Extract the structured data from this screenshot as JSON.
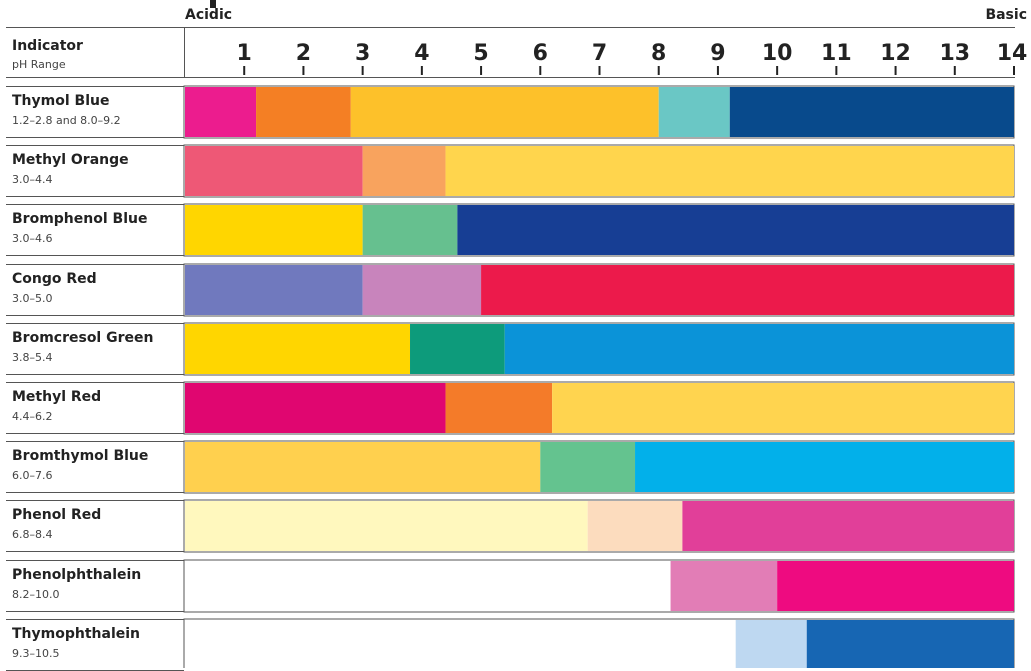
{
  "chart_data": {
    "type": "bar",
    "orientation": "horizontal",
    "subtype": "ph-indicator-ranges",
    "x_axis": {
      "min": 0,
      "max": 14,
      "ticks": [
        1,
        2,
        3,
        4,
        5,
        6,
        7,
        8,
        9,
        10,
        11,
        12,
        13,
        14
      ],
      "tick_labels": [
        "1",
        "2",
        "3",
        "4",
        "5",
        "6",
        "7",
        "8",
        "9",
        "10",
        "11",
        "12",
        "13",
        "14"
      ],
      "left_end_label": "Acidic",
      "right_end_label": "Basic"
    },
    "header": {
      "title": "Indicator",
      "subtitle": "pH Range"
    },
    "indicators": [
      {
        "name": "Thymol Blue",
        "range_text": "1.2–2.8 and 8.0–9.2",
        "segments": [
          {
            "start": 0,
            "end": 1.2,
            "color": "#ec1c8e"
          },
          {
            "start": 1.2,
            "end": 2.8,
            "color": "#f47f24"
          },
          {
            "start": 2.8,
            "end": 8.0,
            "color": "#fdc12a"
          },
          {
            "start": 8.0,
            "end": 9.2,
            "color": "#6ac7c5"
          },
          {
            "start": 9.2,
            "end": 14,
            "color": "#084a8c"
          }
        ]
      },
      {
        "name": "Methyl Orange",
        "range_text": "3.0–4.4",
        "segments": [
          {
            "start": 0,
            "end": 3.0,
            "color": "#ee5876"
          },
          {
            "start": 3.0,
            "end": 4.4,
            "color": "#f8a35e"
          },
          {
            "start": 4.4,
            "end": 14,
            "color": "#ffd54d"
          }
        ]
      },
      {
        "name": "Bromphenol Blue",
        "range_text": "3.0–4.6",
        "segments": [
          {
            "start": 0,
            "end": 3.0,
            "color": "#ffd600"
          },
          {
            "start": 3.0,
            "end": 4.6,
            "color": "#66c08f"
          },
          {
            "start": 4.6,
            "end": 14,
            "color": "#173e94"
          }
        ]
      },
      {
        "name": "Congo Red",
        "range_text": "3.0–5.0",
        "segments": [
          {
            "start": 0,
            "end": 3.0,
            "color": "#7079be"
          },
          {
            "start": 3.0,
            "end": 5.0,
            "color": "#c884bc"
          },
          {
            "start": 5.0,
            "end": 14,
            "color": "#ec1a4b"
          }
        ]
      },
      {
        "name": "Bromcresol Green",
        "range_text": "3.8–5.4",
        "segments": [
          {
            "start": 0,
            "end": 3.8,
            "color": "#ffd600"
          },
          {
            "start": 3.8,
            "end": 5.4,
            "color": "#0d9b7b"
          },
          {
            "start": 5.4,
            "end": 14,
            "color": "#0b93d8"
          }
        ]
      },
      {
        "name": "Methyl Red",
        "range_text": "4.4–6.2",
        "segments": [
          {
            "start": 0,
            "end": 4.4,
            "color": "#e00670"
          },
          {
            "start": 4.4,
            "end": 6.2,
            "color": "#f47b29"
          },
          {
            "start": 6.2,
            "end": 14,
            "color": "#ffd44f"
          }
        ]
      },
      {
        "name": "Bromthymol Blue",
        "range_text": "6.0–7.6",
        "segments": [
          {
            "start": 0,
            "end": 6.0,
            "color": "#ffd04e"
          },
          {
            "start": 6.0,
            "end": 7.6,
            "color": "#64c38f"
          },
          {
            "start": 7.6,
            "end": 14,
            "color": "#02b0ea"
          }
        ]
      },
      {
        "name": "Phenol Red",
        "range_text": "6.8–8.4",
        "segments": [
          {
            "start": 0,
            "end": 6.8,
            "color": "#fff8be"
          },
          {
            "start": 6.8,
            "end": 8.4,
            "color": "#fcdcbe"
          },
          {
            "start": 8.4,
            "end": 14,
            "color": "#e13f99"
          }
        ]
      },
      {
        "name": "Phenolphthalein",
        "range_text": "8.2–10.0",
        "segments": [
          {
            "start": 0,
            "end": 8.2,
            "color": "#ffffff"
          },
          {
            "start": 8.2,
            "end": 10.0,
            "color": "#e27db6"
          },
          {
            "start": 10.0,
            "end": 14,
            "color": "#ee0b80"
          }
        ]
      },
      {
        "name": "Thymophthalein",
        "range_text": "9.3–10.5",
        "segments": [
          {
            "start": 0,
            "end": 9.3,
            "color": "#ffffff"
          },
          {
            "start": 9.3,
            "end": 10.5,
            "color": "#bed8f1"
          },
          {
            "start": 10.5,
            "end": 14,
            "color": "#1766b3"
          }
        ]
      }
    ]
  },
  "colors": {
    "border": "#555555",
    "text": "#222222"
  }
}
